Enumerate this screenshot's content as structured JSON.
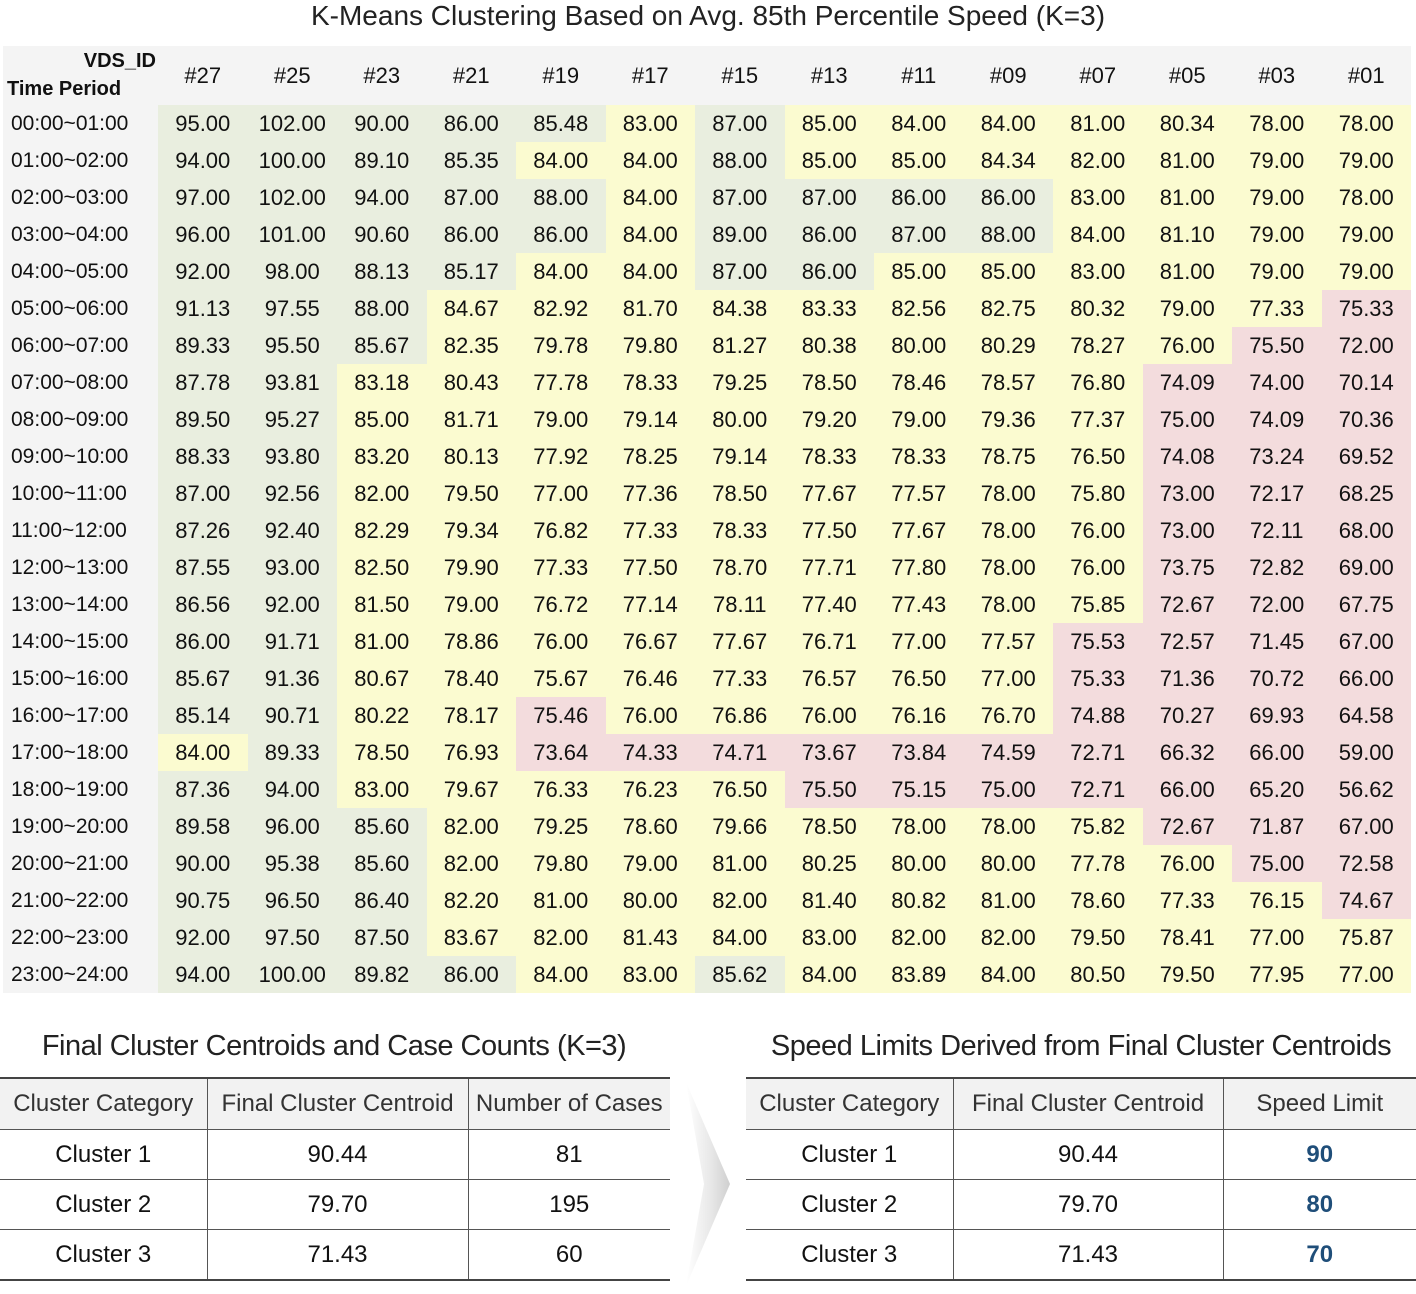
{
  "chart_data": [
    {
      "type": "heatmap",
      "title": "K-Means Clustering Based on Avg. 85th Percentile Speed (K=3)",
      "row_axis_label": "Time Period",
      "col_axis_label": "VDS_ID",
      "columns": [
        "#27",
        "#25",
        "#23",
        "#21",
        "#19",
        "#17",
        "#15",
        "#13",
        "#11",
        "#09",
        "#07",
        "#05",
        "#03",
        "#01"
      ],
      "rows": [
        "00:00~01:00",
        "01:00~02:00",
        "02:00~03:00",
        "03:00~04:00",
        "04:00~05:00",
        "05:00~06:00",
        "06:00~07:00",
        "07:00~08:00",
        "08:00~09:00",
        "09:00~10:00",
        "10:00~11:00",
        "11:00~12:00",
        "12:00~13:00",
        "13:00~14:00",
        "14:00~15:00",
        "15:00~16:00",
        "16:00~17:00",
        "17:00~18:00",
        "18:00~19:00",
        "19:00~20:00",
        "20:00~21:00",
        "21:00~22:00",
        "22:00~23:00",
        "23:00~24:00"
      ],
      "values": [
        [
          "95.00",
          "102.00",
          "90.00",
          "86.00",
          "85.48",
          "83.00",
          "87.00",
          "85.00",
          "84.00",
          "84.00",
          "81.00",
          "80.34",
          "78.00",
          "78.00"
        ],
        [
          "94.00",
          "100.00",
          "89.10",
          "85.35",
          "84.00",
          "84.00",
          "88.00",
          "85.00",
          "85.00",
          "84.34",
          "82.00",
          "81.00",
          "79.00",
          "79.00"
        ],
        [
          "97.00",
          "102.00",
          "94.00",
          "87.00",
          "88.00",
          "84.00",
          "87.00",
          "87.00",
          "86.00",
          "86.00",
          "83.00",
          "81.00",
          "79.00",
          "78.00"
        ],
        [
          "96.00",
          "101.00",
          "90.60",
          "86.00",
          "86.00",
          "84.00",
          "89.00",
          "86.00",
          "87.00",
          "88.00",
          "84.00",
          "81.10",
          "79.00",
          "79.00"
        ],
        [
          "92.00",
          "98.00",
          "88.13",
          "85.17",
          "84.00",
          "84.00",
          "87.00",
          "86.00",
          "85.00",
          "85.00",
          "83.00",
          "81.00",
          "79.00",
          "79.00"
        ],
        [
          "91.13",
          "97.55",
          "88.00",
          "84.67",
          "82.92",
          "81.70",
          "84.38",
          "83.33",
          "82.56",
          "82.75",
          "80.32",
          "79.00",
          "77.33",
          "75.33"
        ],
        [
          "89.33",
          "95.50",
          "85.67",
          "82.35",
          "79.78",
          "79.80",
          "81.27",
          "80.38",
          "80.00",
          "80.29",
          "78.27",
          "76.00",
          "75.50",
          "72.00"
        ],
        [
          "87.78",
          "93.81",
          "83.18",
          "80.43",
          "77.78",
          "78.33",
          "79.25",
          "78.50",
          "78.46",
          "78.57",
          "76.80",
          "74.09",
          "74.00",
          "70.14"
        ],
        [
          "89.50",
          "95.27",
          "85.00",
          "81.71",
          "79.00",
          "79.14",
          "80.00",
          "79.20",
          "79.00",
          "79.36",
          "77.37",
          "75.00",
          "74.09",
          "70.36"
        ],
        [
          "88.33",
          "93.80",
          "83.20",
          "80.13",
          "77.92",
          "78.25",
          "79.14",
          "78.33",
          "78.33",
          "78.75",
          "76.50",
          "74.08",
          "73.24",
          "69.52"
        ],
        [
          "87.00",
          "92.56",
          "82.00",
          "79.50",
          "77.00",
          "77.36",
          "78.50",
          "77.67",
          "77.57",
          "78.00",
          "75.80",
          "73.00",
          "72.17",
          "68.25"
        ],
        [
          "87.26",
          "92.40",
          "82.29",
          "79.34",
          "76.82",
          "77.33",
          "78.33",
          "77.50",
          "77.67",
          "78.00",
          "76.00",
          "73.00",
          "72.11",
          "68.00"
        ],
        [
          "87.55",
          "93.00",
          "82.50",
          "79.90",
          "77.33",
          "77.50",
          "78.70",
          "77.71",
          "77.80",
          "78.00",
          "76.00",
          "73.75",
          "72.82",
          "69.00"
        ],
        [
          "86.56",
          "92.00",
          "81.50",
          "79.00",
          "76.72",
          "77.14",
          "78.11",
          "77.40",
          "77.43",
          "78.00",
          "75.85",
          "72.67",
          "72.00",
          "67.75"
        ],
        [
          "86.00",
          "91.71",
          "81.00",
          "78.86",
          "76.00",
          "76.67",
          "77.67",
          "76.71",
          "77.00",
          "77.57",
          "75.53",
          "72.57",
          "71.45",
          "67.00"
        ],
        [
          "85.67",
          "91.36",
          "80.67",
          "78.40",
          "75.67",
          "76.46",
          "77.33",
          "76.57",
          "76.50",
          "77.00",
          "75.33",
          "71.36",
          "70.72",
          "66.00"
        ],
        [
          "85.14",
          "90.71",
          "80.22",
          "78.17",
          "75.46",
          "76.00",
          "76.86",
          "76.00",
          "76.16",
          "76.70",
          "74.88",
          "70.27",
          "69.93",
          "64.58"
        ],
        [
          "84.00",
          "89.33",
          "78.50",
          "76.93",
          "73.64",
          "74.33",
          "74.71",
          "73.67",
          "73.84",
          "74.59",
          "72.71",
          "66.32",
          "66.00",
          "59.00"
        ],
        [
          "87.36",
          "94.00",
          "83.00",
          "79.67",
          "76.33",
          "76.23",
          "76.50",
          "75.50",
          "75.15",
          "75.00",
          "72.71",
          "66.00",
          "65.20",
          "56.62"
        ],
        [
          "89.58",
          "96.00",
          "85.60",
          "82.00",
          "79.25",
          "78.60",
          "79.66",
          "78.50",
          "78.00",
          "78.00",
          "75.82",
          "72.67",
          "71.87",
          "67.00"
        ],
        [
          "90.00",
          "95.38",
          "85.60",
          "82.00",
          "79.80",
          "79.00",
          "81.00",
          "80.25",
          "80.00",
          "80.00",
          "77.78",
          "76.00",
          "75.00",
          "72.58"
        ],
        [
          "90.75",
          "96.50",
          "86.40",
          "82.20",
          "81.00",
          "80.00",
          "82.00",
          "81.40",
          "80.82",
          "81.00",
          "78.60",
          "77.33",
          "76.15",
          "74.67"
        ],
        [
          "92.00",
          "97.50",
          "87.50",
          "83.67",
          "82.00",
          "81.43",
          "84.00",
          "83.00",
          "82.00",
          "82.00",
          "79.50",
          "78.41",
          "77.00",
          "75.87"
        ],
        [
          "94.00",
          "100.00",
          "89.82",
          "86.00",
          "84.00",
          "83.00",
          "85.62",
          "84.00",
          "83.89",
          "84.00",
          "80.50",
          "79.50",
          "77.95",
          "77.00"
        ]
      ],
      "clusters": [
        [
          1,
          1,
          1,
          1,
          1,
          2,
          1,
          2,
          2,
          2,
          2,
          2,
          2,
          2
        ],
        [
          1,
          1,
          1,
          1,
          2,
          2,
          1,
          2,
          2,
          2,
          2,
          2,
          2,
          2
        ],
        [
          1,
          1,
          1,
          1,
          1,
          2,
          1,
          1,
          1,
          1,
          2,
          2,
          2,
          2
        ],
        [
          1,
          1,
          1,
          1,
          1,
          2,
          1,
          1,
          1,
          1,
          2,
          2,
          2,
          2
        ],
        [
          1,
          1,
          1,
          1,
          2,
          2,
          1,
          1,
          2,
          2,
          2,
          2,
          2,
          2
        ],
        [
          1,
          1,
          1,
          2,
          2,
          2,
          2,
          2,
          2,
          2,
          2,
          2,
          2,
          3
        ],
        [
          1,
          1,
          1,
          2,
          2,
          2,
          2,
          2,
          2,
          2,
          2,
          2,
          3,
          3
        ],
        [
          1,
          1,
          2,
          2,
          2,
          2,
          2,
          2,
          2,
          2,
          2,
          3,
          3,
          3
        ],
        [
          1,
          1,
          2,
          2,
          2,
          2,
          2,
          2,
          2,
          2,
          2,
          3,
          3,
          3
        ],
        [
          1,
          1,
          2,
          2,
          2,
          2,
          2,
          2,
          2,
          2,
          2,
          3,
          3,
          3
        ],
        [
          1,
          1,
          2,
          2,
          2,
          2,
          2,
          2,
          2,
          2,
          2,
          3,
          3,
          3
        ],
        [
          1,
          1,
          2,
          2,
          2,
          2,
          2,
          2,
          2,
          2,
          2,
          3,
          3,
          3
        ],
        [
          1,
          1,
          2,
          2,
          2,
          2,
          2,
          2,
          2,
          2,
          2,
          3,
          3,
          3
        ],
        [
          1,
          1,
          2,
          2,
          2,
          2,
          2,
          2,
          2,
          2,
          2,
          3,
          3,
          3
        ],
        [
          1,
          1,
          2,
          2,
          2,
          2,
          2,
          2,
          2,
          2,
          3,
          3,
          3,
          3
        ],
        [
          1,
          1,
          2,
          2,
          2,
          2,
          2,
          2,
          2,
          2,
          3,
          3,
          3,
          3
        ],
        [
          1,
          1,
          2,
          2,
          3,
          2,
          2,
          2,
          2,
          2,
          3,
          3,
          3,
          3
        ],
        [
          2,
          1,
          2,
          2,
          3,
          3,
          3,
          3,
          3,
          3,
          3,
          3,
          3,
          3
        ],
        [
          1,
          1,
          2,
          2,
          2,
          2,
          2,
          3,
          3,
          3,
          3,
          3,
          3,
          3
        ],
        [
          1,
          1,
          1,
          2,
          2,
          2,
          2,
          2,
          2,
          2,
          2,
          3,
          3,
          3
        ],
        [
          1,
          1,
          1,
          2,
          2,
          2,
          2,
          2,
          2,
          2,
          2,
          2,
          3,
          3
        ],
        [
          1,
          1,
          1,
          2,
          2,
          2,
          2,
          2,
          2,
          2,
          2,
          2,
          2,
          3
        ],
        [
          1,
          1,
          1,
          2,
          2,
          2,
          2,
          2,
          2,
          2,
          2,
          2,
          2,
          2
        ],
        [
          1,
          1,
          1,
          1,
          2,
          2,
          1,
          2,
          2,
          2,
          2,
          2,
          2,
          2
        ]
      ]
    },
    {
      "type": "table",
      "title": "Final Cluster Centroids and Case Counts (K=3)",
      "headers": [
        "Cluster Category",
        "Final Cluster Centroid",
        "Number of Cases"
      ],
      "rows": [
        [
          "Cluster 1",
          "90.44",
          "81"
        ],
        [
          "Cluster 2",
          "79.70",
          "195"
        ],
        [
          "Cluster 3",
          "71.43",
          "60"
        ]
      ]
    },
    {
      "type": "table",
      "title": "Speed Limits Derived from Final Cluster Centroids",
      "headers": [
        "Cluster Category",
        "Final Cluster Centroid",
        "Speed Limit"
      ],
      "rows": [
        [
          "Cluster 1",
          "90.44",
          "90"
        ],
        [
          "Cluster 2",
          "79.70",
          "80"
        ],
        [
          "Cluster 3",
          "71.43",
          "70"
        ]
      ]
    }
  ],
  "colors": {
    "cluster1": "#e9eedf",
    "cluster2": "#fbfbd0",
    "cluster3": "#f3dcdd",
    "speed_limit_text": "#1f4e79"
  }
}
